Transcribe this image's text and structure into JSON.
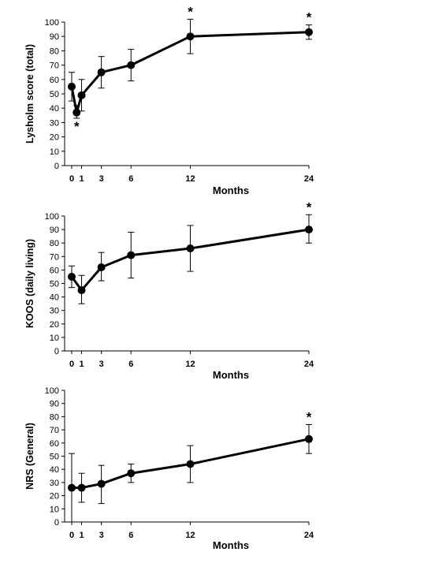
{
  "figure": {
    "background": "#ffffff",
    "line_color": "#000000"
  },
  "chart_data": [
    {
      "type": "line",
      "ylabel": "Lysholm score (total)",
      "xlabel": "Months",
      "ylim": [
        0,
        100
      ],
      "yticks": [
        0,
        10,
        20,
        30,
        40,
        50,
        60,
        70,
        80,
        90,
        100
      ],
      "xticks": [
        0,
        1,
        3,
        6,
        12,
        24
      ],
      "xlim": [
        0,
        24
      ],
      "grid": false,
      "legend": "none",
      "series": [
        {
          "x": [
            0,
            0.5,
            1,
            3,
            6,
            12,
            24
          ],
          "y": [
            55,
            37,
            49,
            65,
            70,
            90,
            93
          ],
          "err_low": [
            45,
            33,
            38,
            54,
            59,
            78,
            88
          ],
          "err_high": [
            65,
            42,
            60,
            76,
            81,
            102,
            98
          ],
          "significant": [
            false,
            true,
            false,
            false,
            false,
            true,
            true
          ]
        }
      ],
      "significance_marker": "*"
    },
    {
      "type": "line",
      "ylabel": "KOOS (daily living)",
      "xlabel": "Months",
      "ylim": [
        0,
        100
      ],
      "yticks": [
        0,
        10,
        20,
        30,
        40,
        50,
        60,
        70,
        80,
        90,
        100
      ],
      "xticks": [
        0,
        1,
        3,
        6,
        12,
        24
      ],
      "xlim": [
        0,
        24
      ],
      "grid": false,
      "legend": "none",
      "series": [
        {
          "x": [
            0,
            1,
            3,
            6,
            12,
            24
          ],
          "y": [
            55,
            45,
            62,
            71,
            76,
            90
          ],
          "err_low": [
            47,
            35,
            52,
            54,
            59,
            80
          ],
          "err_high": [
            63,
            56,
            73,
            88,
            93,
            101
          ],
          "significant": [
            false,
            false,
            false,
            false,
            false,
            true
          ]
        }
      ],
      "significance_marker": "*"
    },
    {
      "type": "line",
      "ylabel": "NRS (General)",
      "xlabel": "Months",
      "ylim": [
        0,
        100
      ],
      "yticks": [
        0,
        10,
        20,
        30,
        40,
        50,
        60,
        70,
        80,
        90,
        100
      ],
      "xticks": [
        0,
        1,
        3,
        6,
        12,
        24
      ],
      "xlim": [
        0,
        24
      ],
      "grid": false,
      "legend": "none",
      "series": [
        {
          "x": [
            0,
            1,
            3,
            6,
            12,
            24
          ],
          "y": [
            26,
            26,
            29,
            37,
            44,
            63
          ],
          "err_low": [
            0,
            15,
            14,
            30,
            30,
            52
          ],
          "err_high": [
            52,
            37,
            43,
            44,
            58,
            74
          ],
          "significant": [
            false,
            false,
            false,
            false,
            false,
            true
          ]
        }
      ],
      "significance_marker": "*"
    }
  ]
}
